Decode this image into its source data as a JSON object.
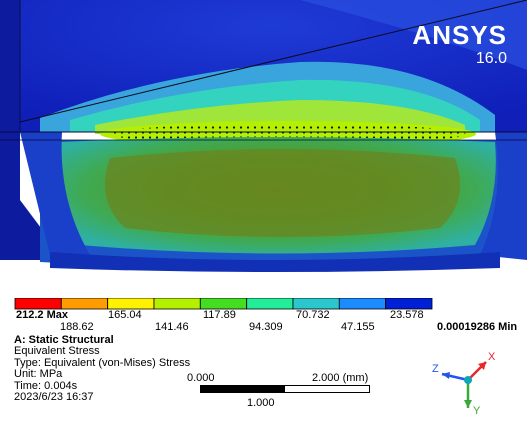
{
  "branding": {
    "logo": "ANSYS",
    "version": "16.0"
  },
  "legend": {
    "max_label": "212.2 Max",
    "min_label": "0.00019286 Min",
    "upper_values": [
      "165.04",
      "117.89",
      "70.732",
      "23.578"
    ],
    "lower_values": [
      "188.62",
      "141.46",
      "94.309",
      "47.155"
    ],
    "colors": [
      "#ff0000",
      "#ff9c00",
      "#fff200",
      "#b5f000",
      "#44dd22",
      "#22ee99",
      "#2ac8cc",
      "#1a8cff",
      "#0020d8"
    ]
  },
  "info": {
    "title": "A: Static Structural",
    "result": "Equivalent Stress",
    "type_line": "Type: Equivalent (von-Mises) Stress",
    "unit_line": "Unit: MPa",
    "time_line": "Time: 0.004s",
    "date_line": "2023/6/23 16:37"
  },
  "scale_bar": {
    "start": "0.000",
    "end": "2.000 (mm)",
    "mid": "1.000"
  },
  "triad": {
    "x_label": "X",
    "y_label": "Y",
    "z_label": "Z",
    "x_color": "#e8262b",
    "y_color": "#3aa83a",
    "z_color": "#2255ee"
  }
}
